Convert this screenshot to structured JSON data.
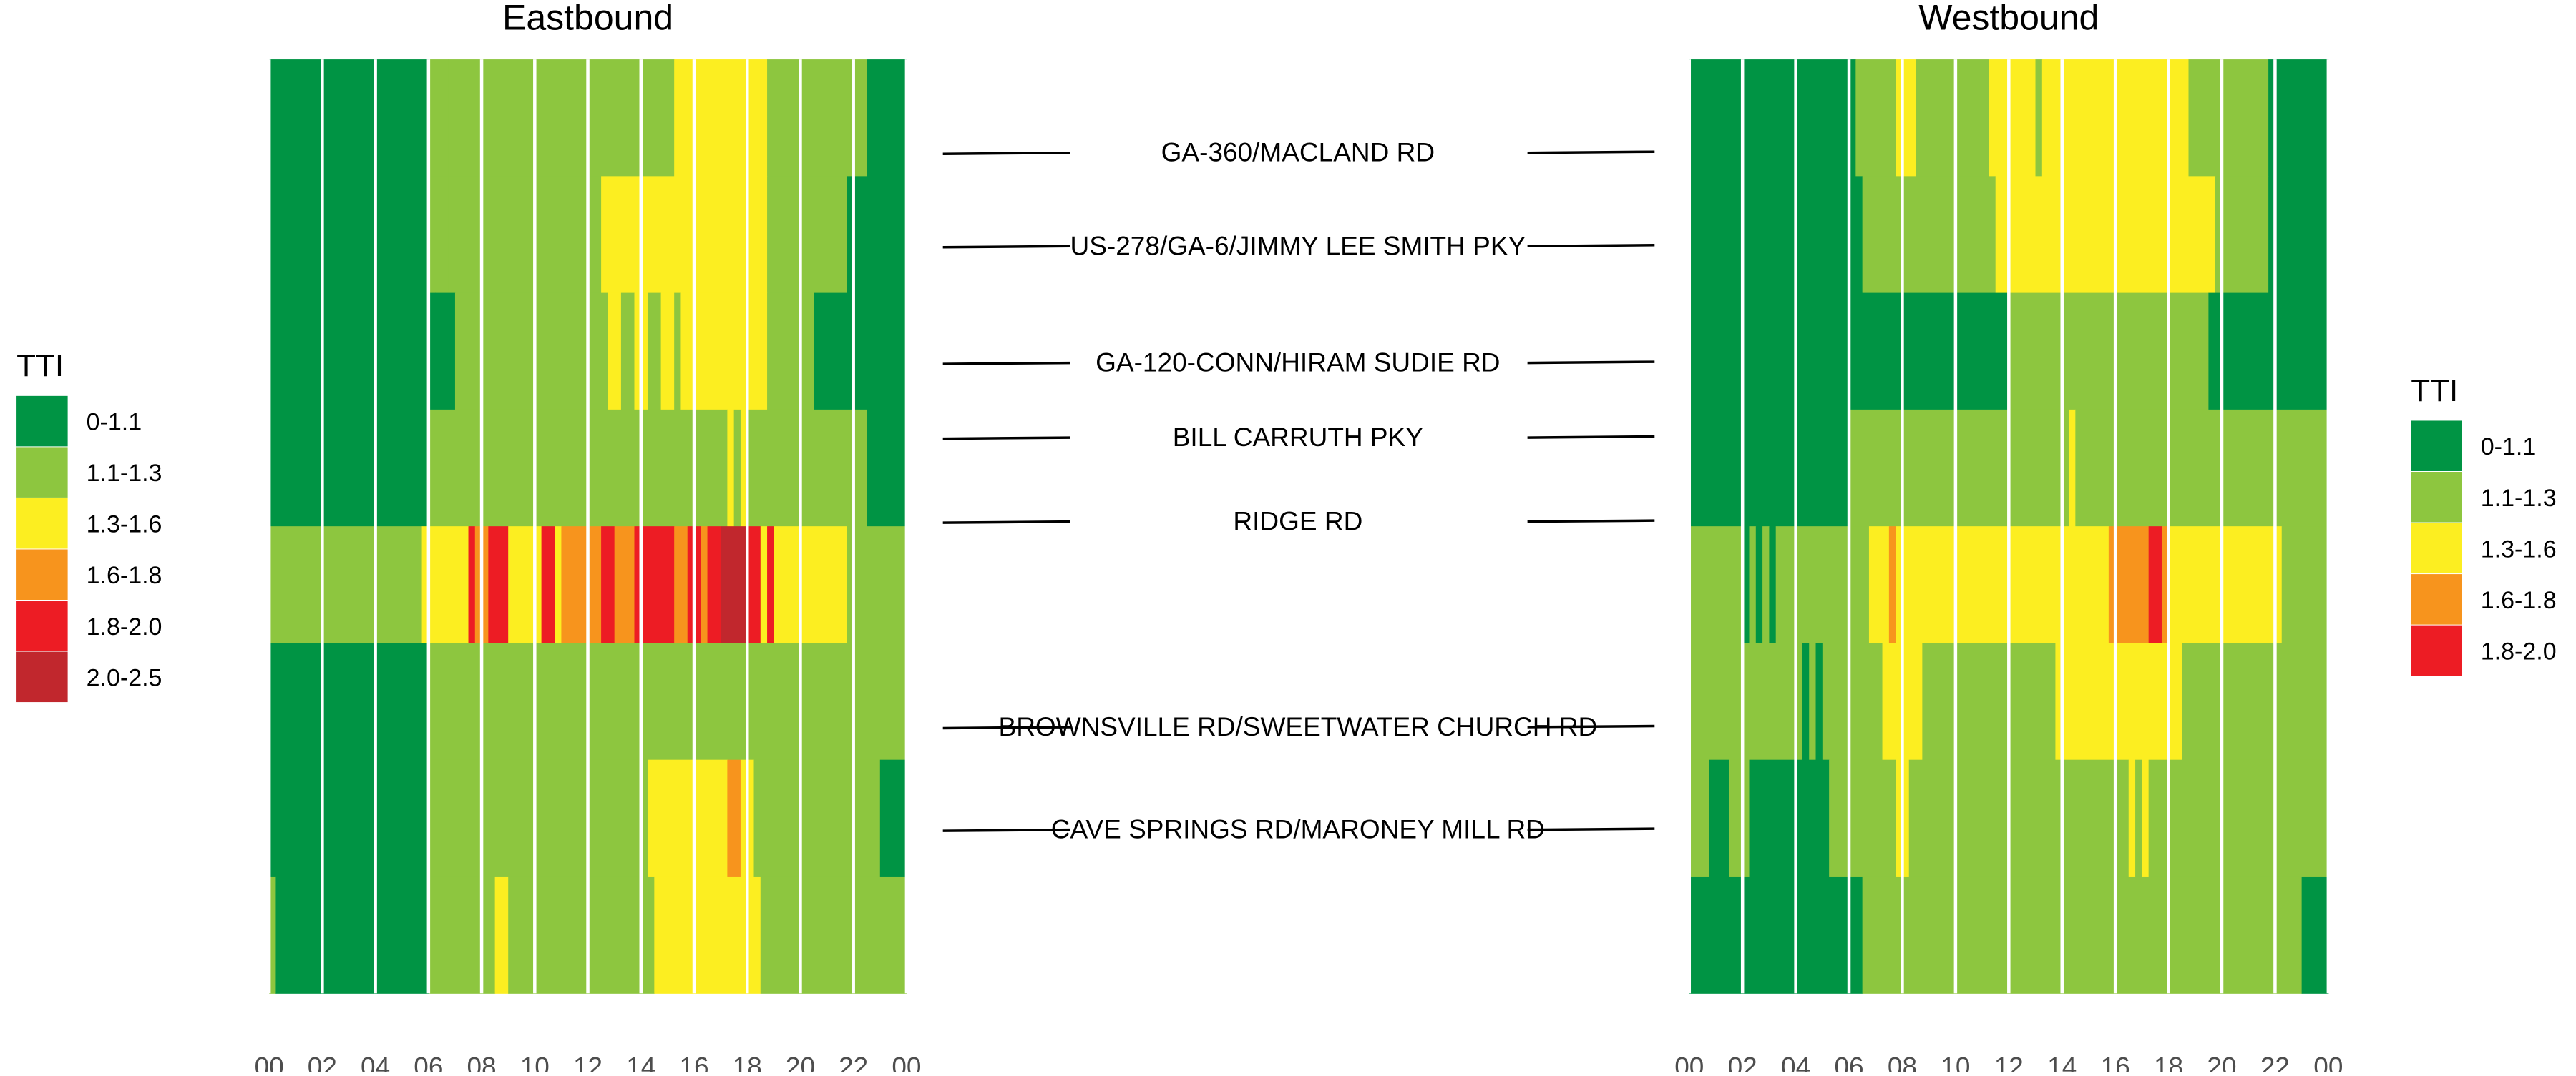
{
  "colors": {
    "0-1.1": "#009444",
    "1.1-1.3": "#8dc63f",
    "1.3-1.6": "#fcee21",
    "1.6-1.8": "#f7941d",
    "1.8-2.0": "#ed1c24",
    "2.0-2.5": "#c1272d"
  },
  "chart_data": [
    {
      "type": "heatmap",
      "title": "Eastbound",
      "x_unit": "hour",
      "x_range": [
        0,
        24
      ],
      "x_tick_labels": [
        "00",
        "02",
        "04",
        "06",
        "08",
        "10",
        "12",
        "14",
        "16",
        "18",
        "20",
        "22",
        "00"
      ],
      "legend": {
        "title": "TTI",
        "placement": "left",
        "categories": [
          "0-1.1",
          "1.1-1.3",
          "1.3-1.6",
          "1.6-1.8",
          "1.8-2.0",
          "2.0-2.5"
        ]
      },
      "segments": [
        {
          "runs": [
            [
              0,
              6,
              "0-1.1"
            ],
            [
              6,
              6.75,
              "1.1-1.3"
            ],
            [
              6.75,
              15.25,
              "1.1-1.3"
            ],
            [
              15.25,
              18.75,
              "1.3-1.6"
            ],
            [
              18.75,
              22.5,
              "1.1-1.3"
            ],
            [
              22.5,
              24,
              "0-1.1"
            ]
          ]
        },
        {
          "runs": [
            [
              0,
              6,
              "0-1.1"
            ],
            [
              6,
              6.75,
              "1.1-1.3"
            ],
            [
              6.75,
              12.5,
              "1.1-1.3"
            ],
            [
              12.5,
              18.75,
              "1.3-1.6"
            ],
            [
              18.75,
              21.75,
              "1.1-1.3"
            ],
            [
              21.75,
              24,
              "0-1.1"
            ]
          ]
        },
        {
          "runs": [
            [
              0,
              6.25,
              "0-1.1"
            ],
            [
              6.25,
              7,
              "0-1.1"
            ],
            [
              7,
              12.75,
              "1.1-1.3"
            ],
            [
              12.75,
              13.25,
              "1.3-1.6"
            ],
            [
              13.25,
              13.75,
              "1.1-1.3"
            ],
            [
              13.75,
              14.25,
              "1.3-1.6"
            ],
            [
              14.25,
              14.75,
              "1.1-1.3"
            ],
            [
              14.75,
              15.25,
              "1.3-1.6"
            ],
            [
              15.25,
              15.5,
              "1.1-1.3"
            ],
            [
              15.5,
              18.75,
              "1.3-1.6"
            ],
            [
              18.75,
              20.5,
              "1.1-1.3"
            ],
            [
              20.5,
              24,
              "0-1.1"
            ]
          ]
        },
        {
          "runs": [
            [
              0,
              6,
              "0-1.1"
            ],
            [
              6,
              17.25,
              "1.1-1.3"
            ],
            [
              17.25,
              17.5,
              "1.3-1.6"
            ],
            [
              17.5,
              17.75,
              "1.1-1.3"
            ],
            [
              17.75,
              18,
              "1.3-1.6"
            ],
            [
              18,
              22.5,
              "1.1-1.3"
            ],
            [
              22.5,
              24,
              "0-1.1"
            ]
          ]
        },
        {
          "runs": [
            [
              0,
              5.75,
              "1.1-1.3"
            ],
            [
              5.75,
              7.5,
              "1.3-1.6"
            ],
            [
              7.5,
              7.75,
              "1.8-2.0"
            ],
            [
              7.75,
              8.25,
              "1.6-1.8"
            ],
            [
              8.25,
              9,
              "1.8-2.0"
            ],
            [
              9,
              10.25,
              "1.3-1.6"
            ],
            [
              10.25,
              10.75,
              "1.8-2.0"
            ],
            [
              10.75,
              11,
              "1.3-1.6"
            ],
            [
              11,
              12.5,
              "1.6-1.8"
            ],
            [
              12.5,
              13,
              "1.8-2.0"
            ],
            [
              13,
              13.75,
              "1.6-1.8"
            ],
            [
              13.75,
              15.25,
              "1.8-2.0"
            ],
            [
              15.25,
              15.75,
              "1.6-1.8"
            ],
            [
              15.75,
              16.25,
              "1.8-2.0"
            ],
            [
              16.25,
              16.5,
              "1.6-1.8"
            ],
            [
              16.5,
              17,
              "1.8-2.0"
            ],
            [
              17,
              18,
              "2.0-2.5"
            ],
            [
              18,
              18.5,
              "1.8-2.0"
            ],
            [
              18.5,
              18.75,
              "1.3-1.6"
            ],
            [
              18.75,
              19,
              "1.8-2.0"
            ],
            [
              19,
              21.75,
              "1.3-1.6"
            ],
            [
              21.75,
              24,
              "1.1-1.3"
            ]
          ]
        },
        {
          "runs": [
            [
              0,
              6,
              "0-1.1"
            ],
            [
              6,
              24,
              "1.1-1.3"
            ]
          ]
        },
        {
          "runs": [
            [
              0,
              6,
              "0-1.1"
            ],
            [
              6,
              14.25,
              "1.1-1.3"
            ],
            [
              14.25,
              17.25,
              "1.3-1.6"
            ],
            [
              17.25,
              17.75,
              "1.6-1.8"
            ],
            [
              17.75,
              18.25,
              "1.3-1.6"
            ],
            [
              18.25,
              23,
              "1.1-1.3"
            ],
            [
              23,
              24,
              "0-1.1"
            ]
          ]
        },
        {
          "runs": [
            [
              0,
              0.25,
              "1.1-1.3"
            ],
            [
              0.25,
              6,
              "0-1.1"
            ],
            [
              6,
              8.5,
              "1.1-1.3"
            ],
            [
              8.5,
              9,
              "1.3-1.6"
            ],
            [
              9,
              14.5,
              "1.1-1.3"
            ],
            [
              14.5,
              18.5,
              "1.3-1.6"
            ],
            [
              18.5,
              24,
              "1.1-1.3"
            ]
          ]
        }
      ]
    },
    {
      "type": "heatmap",
      "title": "Westbound",
      "x_unit": "hour",
      "x_range": [
        0,
        24
      ],
      "x_tick_labels": [
        "00",
        "02",
        "04",
        "06",
        "08",
        "10",
        "12",
        "14",
        "16",
        "18",
        "20",
        "22",
        "00"
      ],
      "legend": {
        "title": "TTI",
        "placement": "right",
        "categories": [
          "0-1.1",
          "1.1-1.3",
          "1.3-1.6",
          "1.6-1.8",
          "1.8-2.0"
        ]
      },
      "segments": [
        {
          "runs": [
            [
              0,
              6.25,
              "0-1.1"
            ],
            [
              6.25,
              7.75,
              "1.1-1.3"
            ],
            [
              7.75,
              8.5,
              "1.3-1.6"
            ],
            [
              8.5,
              11.25,
              "1.1-1.3"
            ],
            [
              11.25,
              13,
              "1.3-1.6"
            ],
            [
              13,
              13.25,
              "1.1-1.3"
            ],
            [
              13.25,
              18.75,
              "1.3-1.6"
            ],
            [
              18.75,
              21.75,
              "1.1-1.3"
            ],
            [
              21.75,
              24,
              "0-1.1"
            ]
          ]
        },
        {
          "runs": [
            [
              0,
              6.5,
              "0-1.1"
            ],
            [
              6.5,
              11.5,
              "1.1-1.3"
            ],
            [
              11.5,
              19.75,
              "1.3-1.6"
            ],
            [
              19.75,
              21.75,
              "1.1-1.3"
            ],
            [
              21.75,
              24,
              "0-1.1"
            ]
          ]
        },
        {
          "runs": [
            [
              0,
              6.5,
              "0-1.1"
            ],
            [
              6.5,
              12,
              "0-1.1"
            ],
            [
              12,
              19.5,
              "1.1-1.3"
            ],
            [
              19.5,
              24,
              "0-1.1"
            ]
          ]
        },
        {
          "runs": [
            [
              0,
              6,
              "0-1.1"
            ],
            [
              6,
              14.25,
              "1.1-1.3"
            ],
            [
              14.25,
              14.5,
              "1.3-1.6"
            ],
            [
              14.5,
              24,
              "1.1-1.3"
            ]
          ]
        },
        {
          "runs": [
            [
              0,
              2,
              "1.1-1.3"
            ],
            [
              2,
              2.25,
              "0-1.1"
            ],
            [
              2.25,
              2.5,
              "1.1-1.3"
            ],
            [
              2.5,
              2.75,
              "0-1.1"
            ],
            [
              2.75,
              3,
              "1.1-1.3"
            ],
            [
              3,
              3.25,
              "0-1.1"
            ],
            [
              3.25,
              6.75,
              "1.1-1.3"
            ],
            [
              6.75,
              7.5,
              "1.3-1.6"
            ],
            [
              7.5,
              7.75,
              "1.6-1.8"
            ],
            [
              7.75,
              15.75,
              "1.3-1.6"
            ],
            [
              15.75,
              17.25,
              "1.6-1.8"
            ],
            [
              17.25,
              17.75,
              "1.8-2.0"
            ],
            [
              17.75,
              18,
              "1.6-1.8"
            ],
            [
              18,
              22.25,
              "1.3-1.6"
            ],
            [
              22.25,
              24,
              "1.1-1.3"
            ]
          ]
        },
        {
          "runs": [
            [
              0,
              4.25,
              "1.1-1.3"
            ],
            [
              4.25,
              4.5,
              "0-1.1"
            ],
            [
              4.5,
              4.75,
              "1.1-1.3"
            ],
            [
              4.75,
              5,
              "0-1.1"
            ],
            [
              5,
              7.25,
              "1.1-1.3"
            ],
            [
              7.25,
              8.75,
              "1.3-1.6"
            ],
            [
              8.75,
              13.75,
              "1.1-1.3"
            ],
            [
              13.75,
              18.5,
              "1.3-1.6"
            ],
            [
              18.5,
              24,
              "1.1-1.3"
            ]
          ]
        },
        {
          "runs": [
            [
              0,
              0.75,
              "1.1-1.3"
            ],
            [
              0.75,
              1.5,
              "0-1.1"
            ],
            [
              1.5,
              2.25,
              "1.1-1.3"
            ],
            [
              2.25,
              5.25,
              "0-1.1"
            ],
            [
              5.25,
              7.75,
              "1.1-1.3"
            ],
            [
              7.75,
              8.25,
              "1.3-1.6"
            ],
            [
              8.25,
              16.5,
              "1.1-1.3"
            ],
            [
              16.5,
              16.75,
              "1.3-1.6"
            ],
            [
              16.75,
              17,
              "1.1-1.3"
            ],
            [
              17,
              17.25,
              "1.3-1.6"
            ],
            [
              17.25,
              24,
              "1.1-1.3"
            ]
          ]
        },
        {
          "runs": [
            [
              0,
              6.5,
              "0-1.1"
            ],
            [
              6.5,
              23,
              "1.1-1.3"
            ],
            [
              23,
              24,
              "0-1.1"
            ]
          ]
        }
      ]
    }
  ],
  "corridor_labels": [
    {
      "text": "GA-360/MACLAND RD",
      "at": 0.1
    },
    {
      "text": "US-278/GA-6/JIMMY LEE SMITH PKY",
      "at": 0.2
    },
    {
      "text": "GA-120-CONN/HIRAM SUDIE RD",
      "at": 0.325
    },
    {
      "text": "BILL CARRUTH PKY",
      "at": 0.405
    },
    {
      "text": "RIDGE RD",
      "at": 0.495
    },
    {
      "text": "BROWNSVILLE RD/SWEETWATER CHURCH RD",
      "at": 0.715
    },
    {
      "text": "CAVE SPRINGS RD/MARONEY MILL RD",
      "at": 0.825
    }
  ]
}
